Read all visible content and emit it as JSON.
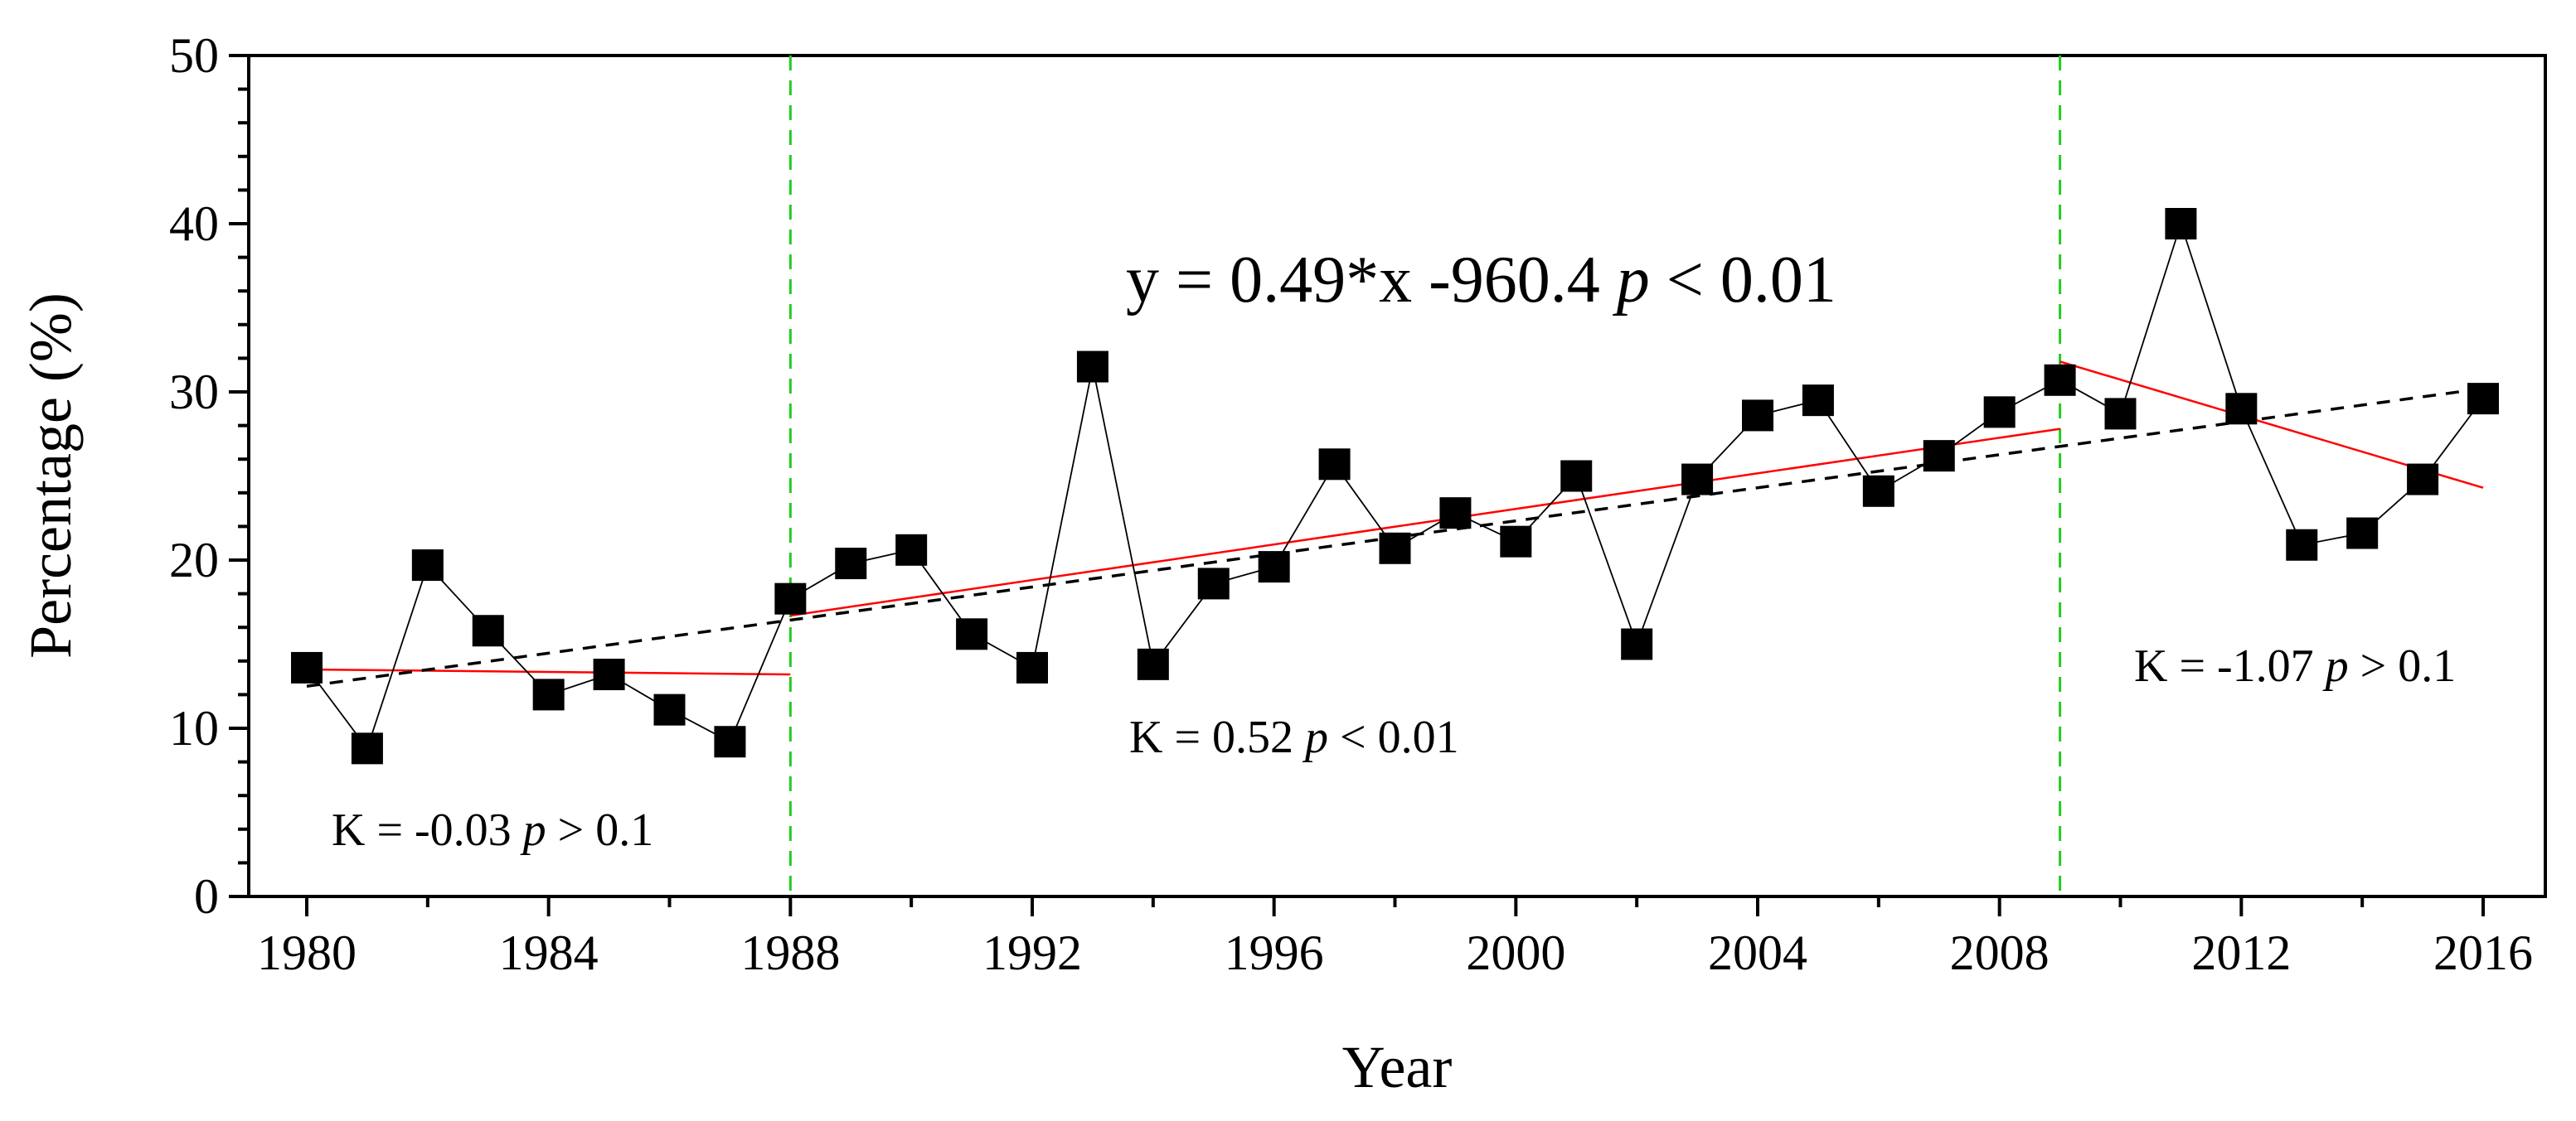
{
  "chart_data": {
    "type": "line",
    "title": "",
    "xlabel": "Year",
    "ylabel": "Percentage (%)",
    "xlim": [
      1978,
      2017
    ],
    "ylim": [
      0,
      50
    ],
    "xticks": [
      1980,
      1984,
      1988,
      1992,
      1996,
      2000,
      2004,
      2008,
      2012,
      2016
    ],
    "xtick_labels": [
      "1980",
      "1984",
      "1988",
      "1992",
      "1996",
      "2000",
      "2004",
      "2008",
      "2012",
      "2016"
    ],
    "yticks": [
      0,
      10,
      20,
      30,
      40,
      50
    ],
    "ytick_labels": [
      "0",
      "10",
      "20",
      "30",
      "40",
      "50"
    ],
    "grid": false,
    "series": [
      {
        "name": "Percentage",
        "marker": "square",
        "color": "#000000",
        "x": [
          1980,
          1981,
          1982,
          1983,
          1984,
          1985,
          1986,
          1987,
          1988,
          1989,
          1990,
          1991,
          1992,
          1993,
          1994,
          1995,
          1996,
          1997,
          1998,
          1999,
          2000,
          2001,
          2002,
          2003,
          2004,
          2005,
          2006,
          2007,
          2008,
          2009,
          2010,
          2011,
          2012,
          2013,
          2014,
          2015,
          2016
        ],
        "values": [
          13.6,
          8.8,
          19.7,
          15.8,
          12.0,
          13.2,
          11.1,
          9.2,
          17.7,
          19.8,
          20.6,
          15.6,
          13.6,
          31.5,
          13.8,
          18.6,
          19.6,
          25.7,
          20.7,
          22.8,
          21.1,
          25.0,
          15.0,
          24.8,
          28.6,
          29.5,
          24.1,
          26.2,
          28.8,
          30.7,
          28.7,
          40.0,
          29.0,
          20.9,
          21.6,
          24.8,
          29.6
        ]
      }
    ],
    "trend_lines": [
      {
        "name": "segment-1980-1988",
        "color": "#ff0000",
        "style": "solid",
        "x": [
          1980,
          1988
        ],
        "values": [
          13.5,
          13.2
        ]
      },
      {
        "name": "segment-1988-2009",
        "color": "#ff0000",
        "style": "solid",
        "x": [
          1988,
          2009
        ],
        "values": [
          16.7,
          27.8
        ]
      },
      {
        "name": "segment-2009-2016",
        "color": "#ff0000",
        "style": "solid",
        "x": [
          2009,
          2016
        ],
        "values": [
          31.8,
          24.3
        ]
      },
      {
        "name": "overall-trend",
        "color": "#000000",
        "style": "dashed",
        "x": [
          1980,
          2016
        ],
        "values": [
          12.5,
          30.2
        ]
      }
    ],
    "change_points": [
      1988,
      2009
    ],
    "change_point_color": "#22cc22",
    "annotations": [
      {
        "id": "k1",
        "text_before": "K = -0.03 ",
        "p": "p",
        "text_after": " > 0.1"
      },
      {
        "id": "k2",
        "text_before": "K = 0.52 ",
        "p": "p",
        "text_after": " < 0.01"
      },
      {
        "id": "k3",
        "text_before": "K = -1.07 ",
        "p": "p",
        "text_after": " > 0.1"
      },
      {
        "id": "equation",
        "text_before": "y = 0.49*x -960.4  ",
        "p": "p",
        "text_after": " < 0.01"
      }
    ]
  }
}
